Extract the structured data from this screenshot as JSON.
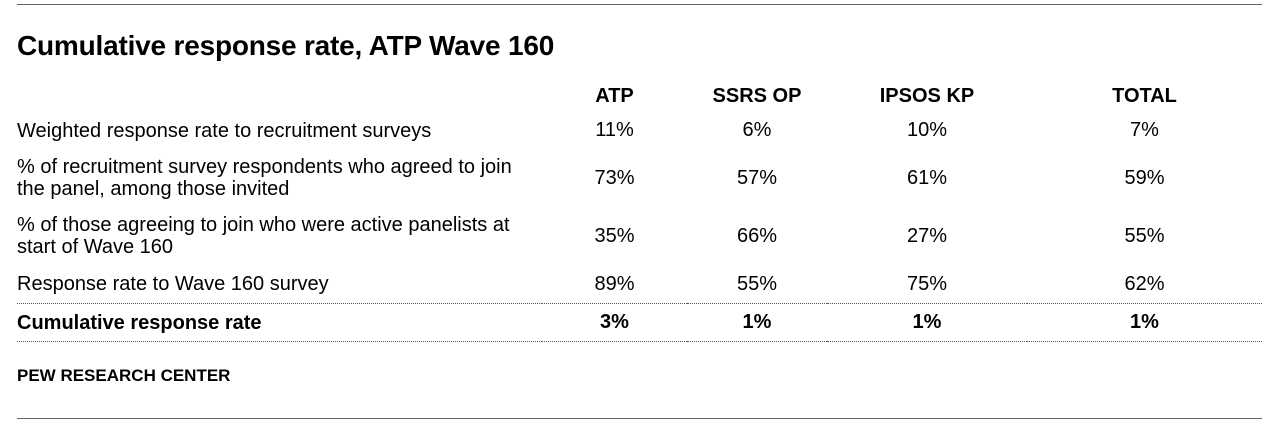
{
  "title": "Cumulative response rate, ATP Wave 160",
  "table": {
    "headers": [
      "",
      "ATP",
      "SSRS OP",
      "IPSOS KP",
      "TOTAL"
    ],
    "rows": [
      {
        "label": "Weighted response rate to recruitment surveys",
        "values": [
          "11%",
          "6%",
          "10%",
          "7%"
        ]
      },
      {
        "label": "% of recruitment survey respondents who agreed to join the panel, among those invited",
        "values": [
          "73%",
          "57%",
          "61%",
          "59%"
        ]
      },
      {
        "label": "% of those agreeing to join who were active panelists at start of Wave 160",
        "values": [
          "35%",
          "66%",
          "27%",
          "55%"
        ]
      },
      {
        "label": "Response rate to Wave 160 survey",
        "values": [
          "89%",
          "55%",
          "75%",
          "62%"
        ]
      }
    ],
    "cumulative": {
      "label": "Cumulative response rate",
      "values": [
        "3%",
        "1%",
        "1%",
        "1%"
      ]
    }
  },
  "source": "PEW RESEARCH CENTER"
}
